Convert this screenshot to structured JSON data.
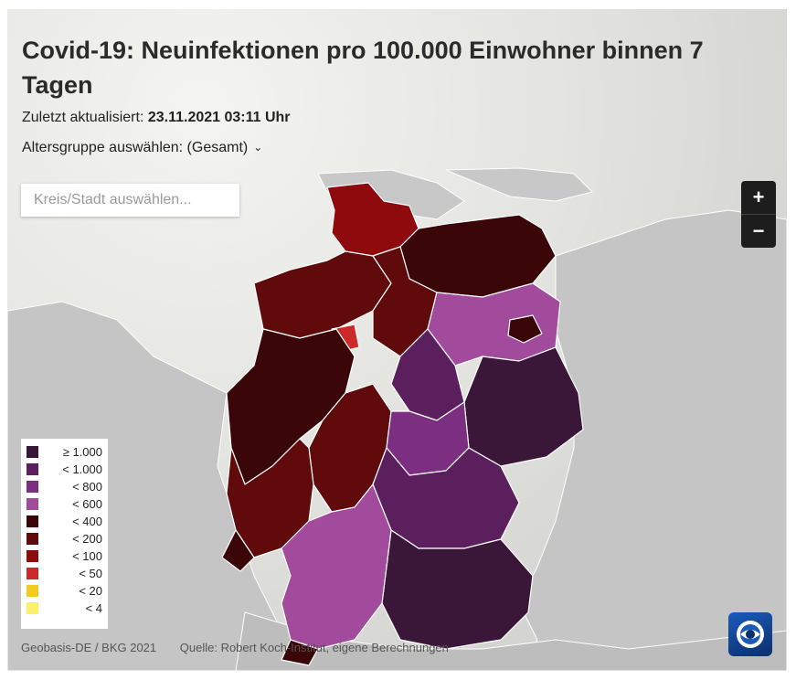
{
  "header": {
    "title": "Covid-19: Neuinfektionen pro 100.000 Einwohner binnen 7 Tagen",
    "updated_label": "Zuletzt aktualisiert:",
    "updated_value": "23.11.2021 03:11 Uhr",
    "age_select_label": "Altersgruppe auswählen: (Gesamt)"
  },
  "search": {
    "placeholder": "Kreis/Stadt auswählen..."
  },
  "zoom": {
    "in_label": "+",
    "out_label": "−"
  },
  "legend": {
    "items": [
      {
        "label": "≥ 1.000",
        "color": "#3a1638"
      },
      {
        "label": "< 1.000",
        "color": "#5c1f5e"
      },
      {
        "label": "< 800",
        "color": "#7c2f80"
      },
      {
        "label": "< 600",
        "color": "#a24a9c"
      },
      {
        "label": "< 400",
        "color": "#3b0608"
      },
      {
        "label": "< 200",
        "color": "#600a0c"
      },
      {
        "label": "< 100",
        "color": "#8f0a0d"
      },
      {
        "label": "< 50",
        "color": "#cc2a2a"
      },
      {
        "label": "< 20",
        "color": "#f2cc1f"
      },
      {
        "label": "< 4",
        "color": "#fbf06a"
      }
    ]
  },
  "footer": {
    "basemap_credit": "Geobasis-DE / BKG 2021",
    "source_credit": "Quelle: Robert Koch-Institut, eigene Berechnungen"
  },
  "logo": {
    "icon": "tagesschau-logo-icon"
  },
  "colors": {
    "water": "#dedeD9",
    "land": "#c4c4c4",
    "border": "#ffffff"
  }
}
